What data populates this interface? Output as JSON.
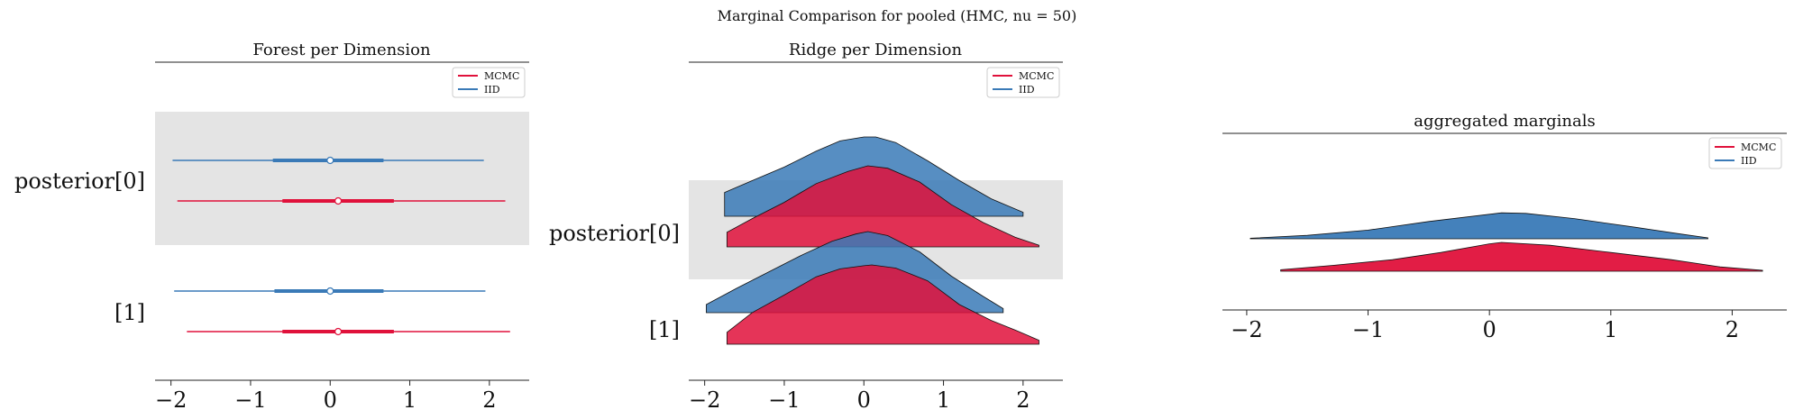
{
  "figure": {
    "title": "Marginal Comparison for pooled (HMC, nu = 50)"
  },
  "colors": {
    "mcmc": "#e0113b",
    "iid": "#3a7ab7",
    "shade": "#e4e4e4"
  },
  "chart_data": [
    {
      "type": "forest",
      "title": "Forest per Dimension",
      "legend": {
        "placement": "top-right",
        "entries": [
          "MCMC",
          "IID"
        ]
      },
      "xlim": [
        -2.2,
        2.5
      ],
      "xticks": [
        -2,
        -1,
        0,
        1,
        2
      ],
      "xtick_labels": [
        "−2",
        "−1",
        "0",
        "1",
        "2"
      ],
      "ylabels": [
        "posterior[0]",
        "[1]"
      ],
      "series": [
        {
          "name": "IID",
          "rows": [
            {
              "low": -1.98,
              "q1": -0.72,
              "median": 0.0,
              "q3": 0.67,
              "high": 1.93
            },
            {
              "low": -1.96,
              "q1": -0.7,
              "median": 0.0,
              "q3": 0.67,
              "high": 1.95
            }
          ]
        },
        {
          "name": "MCMC",
          "rows": [
            {
              "low": -1.92,
              "q1": -0.6,
              "median": 0.1,
              "q3": 0.8,
              "high": 2.2
            },
            {
              "low": -1.8,
              "q1": -0.6,
              "median": 0.1,
              "q3": 0.8,
              "high": 2.26
            }
          ]
        }
      ]
    },
    {
      "type": "ridge",
      "title": "Ridge per Dimension",
      "legend": {
        "placement": "top-right",
        "entries": [
          "MCMC",
          "IID"
        ]
      },
      "xlim": [
        -2.2,
        2.5
      ],
      "xticks": [
        -2,
        -1,
        0,
        1,
        2
      ],
      "xtick_labels": [
        "−2",
        "−1",
        "0",
        "1",
        "2"
      ],
      "ylabels": [
        "posterior[0]",
        "[1]"
      ],
      "densities": [
        {
          "name": "IID",
          "row": 0,
          "points": [
            [
              -1.75,
              0.3
            ],
            [
              -1.4,
              0.45
            ],
            [
              -1.0,
              0.62
            ],
            [
              -0.6,
              0.82
            ],
            [
              -0.3,
              0.95
            ],
            [
              0.0,
              1.0
            ],
            [
              0.15,
              1.0
            ],
            [
              0.4,
              0.93
            ],
            [
              0.8,
              0.7
            ],
            [
              1.2,
              0.45
            ],
            [
              1.6,
              0.22
            ],
            [
              2.0,
              0.05
            ]
          ]
        },
        {
          "name": "MCMC",
          "row": 0,
          "points": [
            [
              -1.72,
              0.18
            ],
            [
              -1.4,
              0.35
            ],
            [
              -1.0,
              0.55
            ],
            [
              -0.6,
              0.78
            ],
            [
              -0.2,
              0.93
            ],
            [
              0.05,
              1.0
            ],
            [
              0.3,
              0.97
            ],
            [
              0.7,
              0.8
            ],
            [
              1.1,
              0.52
            ],
            [
              1.5,
              0.3
            ],
            [
              1.9,
              0.12
            ],
            [
              2.2,
              0.02
            ]
          ]
        },
        {
          "name": "IID",
          "row": 1,
          "points": [
            [
              -1.98,
              0.1
            ],
            [
              -1.6,
              0.3
            ],
            [
              -1.2,
              0.5
            ],
            [
              -0.8,
              0.7
            ],
            [
              -0.4,
              0.88
            ],
            [
              -0.1,
              0.97
            ],
            [
              0.05,
              1.0
            ],
            [
              0.3,
              0.95
            ],
            [
              0.7,
              0.75
            ],
            [
              1.1,
              0.45
            ],
            [
              1.5,
              0.2
            ],
            [
              1.75,
              0.05
            ]
          ]
        },
        {
          "name": "MCMC",
          "row": 1,
          "points": [
            [
              -1.72,
              0.15
            ],
            [
              -1.4,
              0.4
            ],
            [
              -1.0,
              0.62
            ],
            [
              -0.6,
              0.85
            ],
            [
              -0.3,
              0.95
            ],
            [
              0.0,
              0.99
            ],
            [
              0.1,
              1.0
            ],
            [
              0.4,
              0.96
            ],
            [
              0.8,
              0.8
            ],
            [
              1.2,
              0.5
            ],
            [
              1.6,
              0.3
            ],
            [
              1.9,
              0.18
            ],
            [
              2.2,
              0.05
            ]
          ]
        }
      ]
    },
    {
      "type": "ridge",
      "title": "aggregated marginals",
      "legend": {
        "placement": "top-right",
        "entries": [
          "MCMC",
          "IID"
        ]
      },
      "xlim": [
        -2.2,
        2.45
      ],
      "xticks": [
        -2,
        -1,
        0,
        1,
        2
      ],
      "xtick_labels": [
        "−2",
        "−1",
        "0",
        "1",
        "2"
      ],
      "densities": [
        {
          "name": "IID",
          "row": 0,
          "points": [
            [
              -1.97,
              0.02
            ],
            [
              -1.5,
              0.12
            ],
            [
              -1.0,
              0.3
            ],
            [
              -0.5,
              0.6
            ],
            [
              0.0,
              0.85
            ],
            [
              0.1,
              0.9
            ],
            [
              0.3,
              0.88
            ],
            [
              0.7,
              0.7
            ],
            [
              1.2,
              0.4
            ],
            [
              1.6,
              0.15
            ],
            [
              1.8,
              0.03
            ]
          ]
        },
        {
          "name": "MCMC",
          "row": 1,
          "points": [
            [
              -1.72,
              0.05
            ],
            [
              -1.3,
              0.2
            ],
            [
              -0.8,
              0.4
            ],
            [
              -0.4,
              0.65
            ],
            [
              0.0,
              0.95
            ],
            [
              0.1,
              1.0
            ],
            [
              0.5,
              0.9
            ],
            [
              1.0,
              0.65
            ],
            [
              1.5,
              0.4
            ],
            [
              1.9,
              0.15
            ],
            [
              2.25,
              0.03
            ]
          ]
        }
      ]
    }
  ]
}
